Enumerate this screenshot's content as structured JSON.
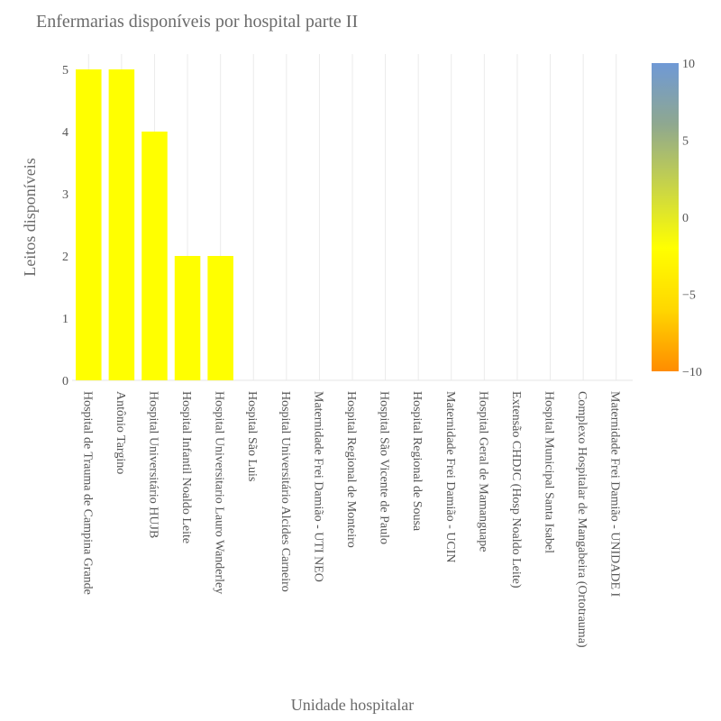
{
  "chart_data": {
    "type": "bar",
    "title": "Enfermarias disponíveis por hospital parte II",
    "xlabel": "Unidade hospitalar",
    "ylabel": "Leitos disponíveis",
    "categories": [
      "Hospital de Trauma de Campina Grande",
      "Antônio Targino",
      "Hospital Universitário HUJB",
      "Hospital Infantil Noaldo Leite",
      "Hospital Universitario Lauro Wanderley",
      "Hospital São Luis",
      "Hospital Universitário Alcides Carneiro",
      "Maternidade Frei Damião - UTI NEO",
      "Hospital Regional de Monteiro",
      "Hospital São Vicente de Paulo",
      "Hospital Regional de Sousa",
      "Maternidade Frei Damião - UCIN",
      "Hospital Geral de Mamanguape",
      "Extensão CHDJC (Hosp Noaldo Leite)",
      "Hospital Municipal Santa Isabel",
      "Complexo Hospitalar de Mangabeira (Ortotrauma)",
      "Maternidade Frei Damião - UNIDADE I"
    ],
    "values": [
      5,
      5,
      4,
      2,
      2,
      0,
      0,
      0,
      0,
      0,
      0,
      0,
      0,
      0,
      0,
      0,
      0
    ],
    "ylim": [
      0,
      5.2
    ],
    "yticks": [
      "0",
      "1",
      "2",
      "3",
      "4",
      "5"
    ],
    "bar_color": "#ffff00",
    "colorbar": {
      "range": [
        -10,
        10
      ],
      "ticks": [
        "10",
        "5",
        "0",
        "−5",
        "−10"
      ],
      "colors": [
        "#ff8c00",
        "#ffd700",
        "#ffff00",
        "#c8d448",
        "#8fa88f",
        "#6f99d6"
      ]
    },
    "grid": true,
    "legend": "none"
  }
}
